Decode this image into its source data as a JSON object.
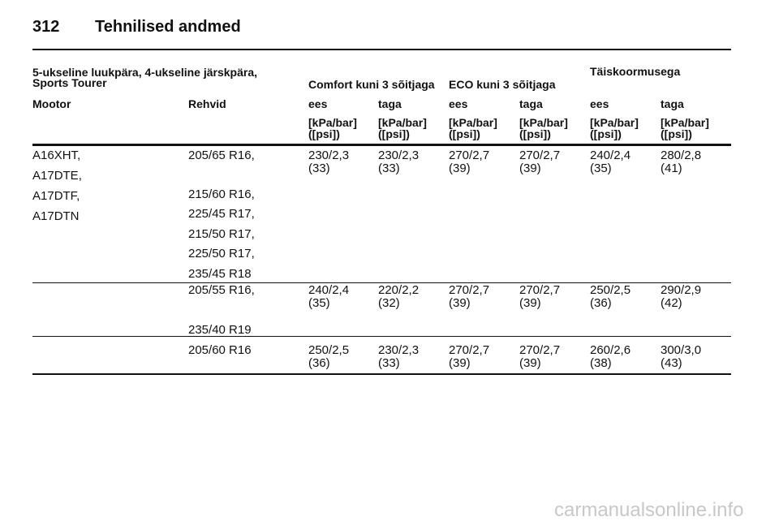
{
  "header": {
    "page_number": "312",
    "title": "Tehnilised andmed"
  },
  "table": {
    "group_header": {
      "vehicle": [
        "5-ukseline luukpära, 4-ukseline järskpära,",
        "Sports Tourer"
      ],
      "groups": [
        "Comfort kuni 3 sõitjaga",
        "ECO kuni 3 sõitjaga",
        "Täiskoormusega"
      ]
    },
    "columns": [
      "Mootor",
      "Rehvid",
      "ees",
      "taga",
      "ees",
      "taga",
      "ees",
      "taga"
    ],
    "units": [
      [
        "[kPa/bar]",
        "([psi])"
      ],
      [
        "[kPa/bar]",
        "([psi])"
      ],
      [
        "[kPa/bar]",
        "([psi])"
      ],
      [
        "[kPa/bar]",
        "([psi])"
      ],
      [
        "[kPa/bar]",
        "([psi])"
      ],
      [
        "[kPa/bar]",
        "([psi])"
      ]
    ],
    "rows": [
      {
        "engines": [
          "A16XHT,",
          "A17DTE,",
          "A17DTF,",
          "A17DTN"
        ],
        "tires": [
          "205/65 R16,",
          "215/60 R16,",
          "225/45 R17,",
          "215/50 R17,",
          "225/50 R17,",
          "235/45 R18"
        ],
        "pressures": [
          [
            "230/2,3",
            "(33)"
          ],
          [
            "230/2,3",
            "(33)"
          ],
          [
            "270/2,7",
            "(39)"
          ],
          [
            "270/2,7",
            "(39)"
          ],
          [
            "240/2,4",
            "(35)"
          ],
          [
            "280/2,8",
            "(41)"
          ]
        ]
      },
      {
        "engines": [],
        "tires": [
          "205/55 R16,",
          "235/40 R19"
        ],
        "pressures": [
          [
            "240/2,4",
            "(35)"
          ],
          [
            "220/2,2",
            "(32)"
          ],
          [
            "270/2,7",
            "(39)"
          ],
          [
            "270/2,7",
            "(39)"
          ],
          [
            "250/2,5",
            "(36)"
          ],
          [
            "290/2,9",
            "(42)"
          ]
        ]
      },
      {
        "engines": [],
        "tires": [
          "205/60 R16"
        ],
        "pressures": [
          [
            "250/2,5",
            "(36)"
          ],
          [
            "230/2,3",
            "(33)"
          ],
          [
            "270/2,7",
            "(39)"
          ],
          [
            "270/2,7",
            "(39)"
          ],
          [
            "260/2,6",
            "(38)"
          ],
          [
            "300/3,0",
            "(43)"
          ]
        ]
      }
    ]
  },
  "watermark": "carmanualsonline.info"
}
